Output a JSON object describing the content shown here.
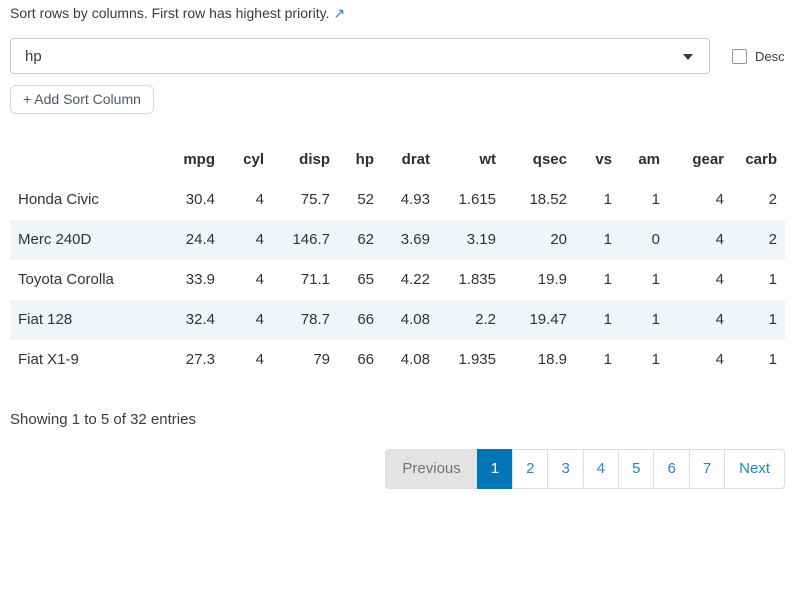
{
  "header": {
    "title": "Sort rows by columns. First row has highest priority.",
    "link_icon": "↗"
  },
  "sort_builder": {
    "column_select_value": "hp",
    "desc_checkbox_label": "Desc",
    "desc_checked": false,
    "add_sort_column_label": "+ Add Sort Column"
  },
  "table": {
    "columns": [
      "mpg",
      "cyl",
      "disp",
      "hp",
      "drat",
      "wt",
      "qsec",
      "vs",
      "am",
      "gear",
      "carb"
    ],
    "rows": [
      {
        "name": "Honda Civic",
        "values": [
          "30.4",
          "4",
          "75.7",
          "52",
          "4.93",
          "1.615",
          "18.52",
          "1",
          "1",
          "4",
          "2"
        ]
      },
      {
        "name": "Merc 240D",
        "values": [
          "24.4",
          "4",
          "146.7",
          "62",
          "3.69",
          "3.19",
          "20",
          "1",
          "0",
          "4",
          "2"
        ]
      },
      {
        "name": "Toyota Corolla",
        "values": [
          "33.9",
          "4",
          "71.1",
          "65",
          "4.22",
          "1.835",
          "19.9",
          "1",
          "1",
          "4",
          "1"
        ]
      },
      {
        "name": "Fiat 128",
        "values": [
          "32.4",
          "4",
          "78.7",
          "66",
          "4.08",
          "2.2",
          "19.47",
          "1",
          "1",
          "4",
          "1"
        ]
      },
      {
        "name": "Fiat X1-9",
        "values": [
          "27.3",
          "4",
          "79",
          "66",
          "4.08",
          "1.935",
          "18.9",
          "1",
          "1",
          "4",
          "1"
        ]
      }
    ],
    "info": "Showing 1 to 5 of 32 entries"
  },
  "pagination": {
    "previous_label": "Previous",
    "pages": [
      "1",
      "2",
      "3",
      "4",
      "5",
      "6",
      "7"
    ],
    "active_page": "1",
    "next_label": "Next"
  },
  "colors": {
    "accent_blue": "#0076b7",
    "link_blue": "#2386c8",
    "stripe": "#f0f5f9",
    "pagination_disabled_bg": "#e3e3e3"
  }
}
